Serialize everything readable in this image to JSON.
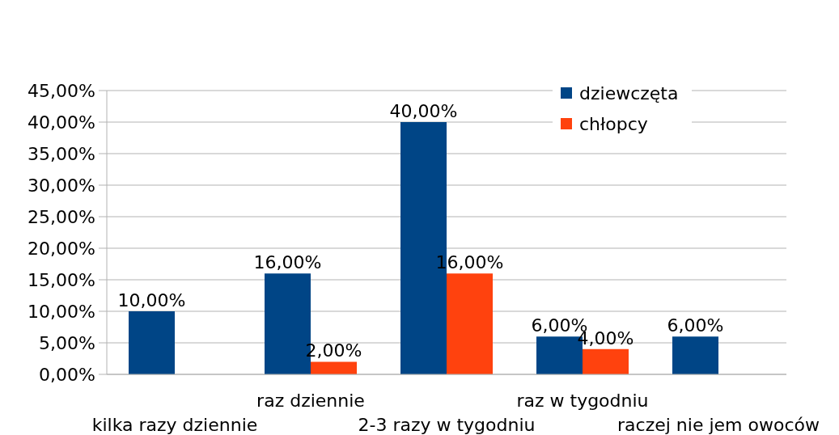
{
  "chart_data": {
    "type": "bar",
    "categories": [
      "kilka razy dziennie",
      "raz dziennie",
      "2-3 razy w tygodniu",
      "raz w tygodniu",
      "raczej nie jem owoców"
    ],
    "series": [
      {
        "name": "dziewczęta",
        "color": "#004586",
        "values": [
          10,
          16,
          40,
          6,
          6
        ],
        "value_labels": [
          "10,00%",
          "16,00%",
          "40,00%",
          "6,00%",
          "6,00%"
        ]
      },
      {
        "name": "chłopcy",
        "color": "#ff420e",
        "values": [
          null,
          2,
          16,
          4,
          null
        ],
        "value_labels": [
          null,
          "2,00%",
          "16,00%",
          "4,00%",
          null
        ]
      }
    ],
    "ylim": [
      0,
      45
    ],
    "yticks": [
      {
        "value": 0,
        "label": "0,00%"
      },
      {
        "value": 5,
        "label": "5,00%"
      },
      {
        "value": 10,
        "label": "10,00%"
      },
      {
        "value": 15,
        "label": "15,00%"
      },
      {
        "value": 20,
        "label": "20,00%"
      },
      {
        "value": 25,
        "label": "25,00%"
      },
      {
        "value": 30,
        "label": "30,00%"
      },
      {
        "value": 35,
        "label": "35,00%"
      },
      {
        "value": 40,
        "label": "40,00%"
      },
      {
        "value": 45,
        "label": "45,00%"
      }
    ],
    "grid": "y",
    "legend": "top right"
  }
}
